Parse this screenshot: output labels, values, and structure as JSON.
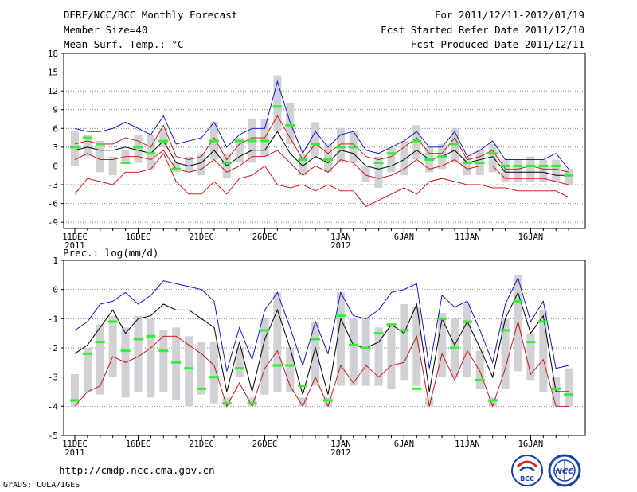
{
  "header": {
    "title": "DERF/NCC/BCC Monthly Forecast",
    "member": "Member Size=40",
    "variable": "Mean Surf. Temp.: °C",
    "period": "For 2011/12/11-2012/01/19",
    "started": "Fcst Started Refer Date 2011/12/10",
    "produced": "Fcst Produced Date 2011/12/11"
  },
  "footer": {
    "url": "http://cmdp.ncc.cma.gov.cn",
    "grads": "GrADS: COLA/IGES",
    "logo1_text": "BCC",
    "logo2_text": "NCC"
  },
  "colors": {
    "ensemble_mean": "#000000",
    "max_line": "#0000cc",
    "min_line": "#cc0000",
    "inner_line": "#cc0000",
    "box": "#cfd1d4",
    "marker": "#33ee33"
  },
  "chart_data": [
    {
      "type": "line",
      "title": "Mean Surf. Temp.: °C",
      "ylabel": "°C",
      "ylim": [
        -10,
        18
      ],
      "yticks": [
        -9,
        -6,
        -3,
        0,
        3,
        6,
        9,
        12,
        15,
        18
      ],
      "xtick_labels": [
        {
          "day": 1,
          "label": "11DEC",
          "sub": "2011"
        },
        {
          "day": 6,
          "label": "16DEC",
          "sub": ""
        },
        {
          "day": 11,
          "label": "21DEC",
          "sub": ""
        },
        {
          "day": 16,
          "label": "26DEC",
          "sub": ""
        },
        {
          "day": 22,
          "label": "1JAN",
          "sub": "2012"
        },
        {
          "day": 27,
          "label": "6JAN",
          "sub": ""
        },
        {
          "day": 32,
          "label": "11JAN",
          "sub": ""
        },
        {
          "day": 37,
          "label": "16JAN",
          "sub": ""
        }
      ],
      "series": [
        {
          "name": "ensemble mean",
          "values": [
            2.5,
            3.0,
            2.5,
            2.5,
            3.0,
            2.5,
            2.0,
            4.0,
            0.5,
            0.0,
            0.5,
            2.5,
            0.0,
            1.5,
            2.5,
            2.5,
            5.5,
            2.0,
            0.0,
            1.5,
            0.5,
            2.5,
            2.0,
            0.0,
            -0.5,
            0.0,
            1.0,
            2.5,
            1.0,
            1.5,
            2.5,
            0.5,
            1.0,
            1.5,
            -1.0,
            -1.0,
            -1.0,
            -1.0,
            -1.5,
            -1.5
          ]
        },
        {
          "name": "max",
          "values": [
            6.0,
            5.5,
            5.5,
            6.0,
            7.0,
            6.0,
            5.0,
            8.0,
            3.5,
            4.0,
            4.5,
            7.0,
            3.0,
            5.0,
            6.0,
            6.0,
            13.5,
            7.0,
            2.0,
            5.5,
            3.0,
            5.0,
            5.5,
            2.5,
            2.0,
            3.0,
            4.0,
            5.5,
            3.0,
            3.0,
            5.5,
            1.5,
            2.5,
            4.0,
            1.0,
            1.0,
            1.0,
            1.0,
            2.0,
            -0.5
          ]
        },
        {
          "name": "min",
          "values": [
            -4.5,
            -2.0,
            -2.5,
            -3.0,
            -1.0,
            -1.0,
            -0.5,
            2.0,
            -2.5,
            -4.5,
            -4.5,
            -2.5,
            -4.5,
            -2.0,
            -1.5,
            0.0,
            -3.0,
            -3.5,
            -3.0,
            -4.0,
            -3.0,
            -4.0,
            -4.0,
            -6.5,
            -5.5,
            -4.5,
            -3.5,
            -4.5,
            -2.5,
            -2.0,
            -2.5,
            -3.0,
            -3.0,
            -3.5,
            -3.5,
            -4.0,
            -4.0,
            -4.0,
            -4.0,
            -5.0
          ]
        },
        {
          "name": "upper",
          "values": [
            3.5,
            4.0,
            3.5,
            3.5,
            4.5,
            4.0,
            3.0,
            6.5,
            1.5,
            1.0,
            1.5,
            4.5,
            1.0,
            3.5,
            4.5,
            4.5,
            8.0,
            4.5,
            1.0,
            3.5,
            2.0,
            3.5,
            3.5,
            1.5,
            1.0,
            1.5,
            3.0,
            4.5,
            2.0,
            2.0,
            4.5,
            1.0,
            1.5,
            2.5,
            -0.5,
            -0.5,
            0.0,
            -0.5,
            -0.5,
            -1.0
          ]
        },
        {
          "name": "lower",
          "values": [
            1.0,
            2.0,
            1.0,
            1.0,
            1.5,
            1.5,
            1.0,
            2.5,
            -0.5,
            -1.0,
            -0.5,
            1.0,
            -1.0,
            0.0,
            1.5,
            1.5,
            2.5,
            0.5,
            -1.5,
            0.0,
            -1.0,
            1.0,
            0.5,
            -1.5,
            -2.0,
            -1.5,
            -0.5,
            1.0,
            -0.5,
            0.0,
            1.0,
            -0.5,
            0.0,
            0.0,
            -2.0,
            -2.0,
            -2.0,
            -2.0,
            -2.5,
            -3.0
          ]
        },
        {
          "name": "box_top",
          "values": [
            5.5,
            5.0,
            4.0,
            1.5,
            2.5,
            5.0,
            5.0,
            6.0,
            0.5,
            1.5,
            2.0,
            7.0,
            2.0,
            4.5,
            7.5,
            7.5,
            14.5,
            10.0,
            2.0,
            7.0,
            3.5,
            6.0,
            5.5,
            0.0,
            1.5,
            3.0,
            4.0,
            6.5,
            3.0,
            3.5,
            6.0,
            1.5,
            2.5,
            3.5,
            1.0,
            1.0,
            1.5,
            1.0,
            1.0,
            -0.5
          ]
        },
        {
          "name": "box_bottom",
          "values": [
            0.0,
            1.5,
            -1.0,
            -1.5,
            0.5,
            0.5,
            -0.5,
            3.0,
            -1.0,
            -1.0,
            -1.5,
            1.0,
            -2.0,
            0.5,
            0.5,
            1.5,
            5.5,
            3.5,
            -1.5,
            1.5,
            -1.0,
            0.5,
            0.5,
            -2.5,
            -3.5,
            -1.0,
            -1.5,
            1.0,
            -1.0,
            -0.5,
            0.5,
            -1.5,
            -1.5,
            -1.0,
            -2.5,
            -2.5,
            -2.5,
            -2.5,
            -2.5,
            -3.0
          ]
        },
        {
          "name": "observed",
          "values": [
            3.0,
            4.5,
            3.5,
            null,
            0.5,
            3.0,
            2.0,
            4.0,
            -0.5,
            null,
            null,
            4.0,
            0.5,
            4.0,
            4.0,
            4.0,
            9.5,
            6.5,
            1.0,
            3.5,
            1.0,
            3.0,
            3.0,
            null,
            0.5,
            2.0,
            null,
            4.0,
            1.0,
            1.5,
            3.5,
            0.5,
            0.5,
            2.0,
            0.0,
            0.0,
            0.0,
            0.0,
            0.0,
            -1.5
          ]
        }
      ]
    },
    {
      "type": "line",
      "title": "Prec.: log(mm/d)",
      "ylabel": "log(mm/d)",
      "ylim": [
        -5,
        1
      ],
      "yticks": [
        -5,
        -4,
        -3,
        -2,
        -1,
        0,
        1
      ],
      "xtick_labels": [
        {
          "day": 1,
          "label": "11DEC",
          "sub": "2011"
        },
        {
          "day": 6,
          "label": "16DEC",
          "sub": ""
        },
        {
          "day": 11,
          "label": "21DEC",
          "sub": ""
        },
        {
          "day": 16,
          "label": "26DEC",
          "sub": ""
        },
        {
          "day": 22,
          "label": "1JAN",
          "sub": "2012"
        },
        {
          "day": 27,
          "label": "6JAN",
          "sub": ""
        },
        {
          "day": 32,
          "label": "11JAN",
          "sub": ""
        },
        {
          "day": 37,
          "label": "16JAN",
          "sub": ""
        }
      ],
      "series": [
        {
          "name": "ensemble mean",
          "values": [
            -2.2,
            -1.9,
            -1.3,
            -0.7,
            -1.5,
            -1.0,
            -0.9,
            -0.5,
            -0.7,
            -0.7,
            -1.0,
            -1.3,
            -3.5,
            -1.8,
            -3.5,
            -1.7,
            -0.7,
            -2.0,
            -3.6,
            -2.0,
            -3.6,
            -1.0,
            -1.9,
            -2.0,
            -1.8,
            -1.2,
            -1.5,
            -0.5,
            -3.5,
            -1.0,
            -1.9,
            -1.1,
            -2.0,
            -3.0,
            -1.0,
            -0.1,
            -1.5,
            -0.9,
            -3.5,
            -3.5
          ]
        },
        {
          "name": "max",
          "values": [
            -1.4,
            -1.1,
            -0.5,
            -0.4,
            -0.1,
            -0.5,
            -0.2,
            0.3,
            0.2,
            0.1,
            0.0,
            -0.4,
            -2.8,
            -1.3,
            -2.4,
            -0.7,
            -0.1,
            -1.3,
            -2.6,
            -1.1,
            -2.2,
            -0.1,
            -0.9,
            -1.0,
            -0.7,
            -0.1,
            0.0,
            0.2,
            -2.7,
            -0.2,
            -0.6,
            -0.4,
            -1.4,
            -2.5,
            -0.5,
            0.4,
            -1.1,
            -0.4,
            -2.7,
            -2.6
          ]
        },
        {
          "name": "min",
          "values": [
            -4.0,
            -3.5,
            -3.3,
            -2.3,
            -2.5,
            -2.3,
            -2.0,
            -1.6,
            -1.6,
            -1.9,
            -2.2,
            -2.6,
            -4.0,
            -3.2,
            -4.0,
            -2.7,
            -2.1,
            -3.3,
            -4.0,
            -3.0,
            -4.0,
            -2.6,
            -3.2,
            -2.6,
            -3.0,
            -2.6,
            -2.5,
            -1.6,
            -4.0,
            -2.2,
            -3.1,
            -2.1,
            -2.8,
            -4.0,
            -2.7,
            -1.1,
            -2.9,
            -2.4,
            -4.0,
            -4.0
          ]
        },
        {
          "name": "box_top",
          "values": [
            -2.9,
            -2.0,
            -1.2,
            -0.9,
            -1.3,
            -0.9,
            -1.0,
            -1.4,
            -1.3,
            -1.6,
            -1.8,
            -1.8,
            -3.7,
            -2.0,
            -3.7,
            -1.0,
            -0.1,
            -2.0,
            -3.7,
            -1.1,
            -3.7,
            -0.1,
            -1.0,
            -1.0,
            -1.3,
            -1.2,
            -0.5,
            -0.6,
            -3.7,
            -0.8,
            -1.0,
            -0.5,
            -2.1,
            -3.7,
            -1.0,
            0.5,
            -1.5,
            -0.7,
            -3.0,
            -2.7
          ]
        },
        {
          "name": "box_bottom",
          "values": [
            -4.0,
            -3.5,
            -3.6,
            -3.0,
            -3.7,
            -3.5,
            -3.7,
            -3.5,
            -3.8,
            -4.0,
            -3.6,
            -3.9,
            -4.0,
            -3.0,
            -4.0,
            -3.6,
            -3.5,
            -3.5,
            -4.0,
            -3.3,
            -4.0,
            -3.3,
            -3.3,
            -3.3,
            -3.3,
            -3.4,
            -3.1,
            -3.3,
            -4.0,
            -3.0,
            -3.0,
            -3.0,
            -3.4,
            -4.0,
            -3.4,
            -2.8,
            -3.1,
            -3.5,
            -4.0,
            -4.0
          ]
        },
        {
          "name": "observed",
          "values": [
            -3.8,
            -2.2,
            -1.8,
            -1.1,
            -2.1,
            -1.7,
            -1.6,
            -2.1,
            -2.5,
            -2.7,
            -3.4,
            -3.0,
            -3.9,
            -2.7,
            -3.9,
            -1.4,
            -2.6,
            -2.6,
            -3.3,
            -1.7,
            -3.8,
            -0.9,
            -1.9,
            -2.0,
            -1.5,
            -1.2,
            -1.4,
            -3.4,
            null,
            -1.0,
            -2.0,
            -1.1,
            -3.1,
            -3.8,
            -1.4,
            -0.4,
            -1.8,
            -1.1,
            -3.4,
            -3.6
          ]
        }
      ]
    }
  ]
}
